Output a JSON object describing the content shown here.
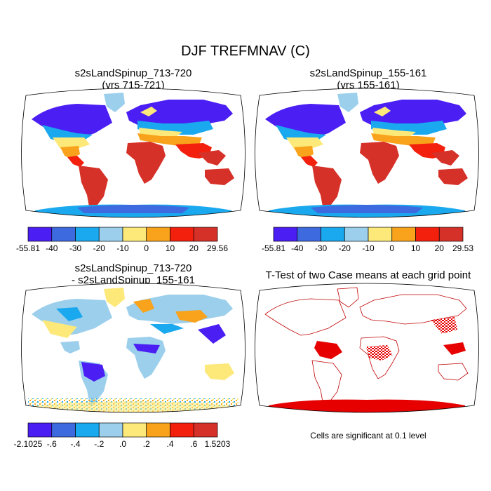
{
  "figure": {
    "title": "DJF TREFMNAV (C)",
    "note": "Cells are significant at 0.1 level"
  },
  "palettes": {
    "temperature": [
      "#4b1ef4",
      "#3e6ae0",
      "#1aa8ee",
      "#9bcfec",
      "#fde97a",
      "#f8a31b",
      "#f4200e",
      "#d63128"
    ],
    "difference": [
      "#4b1ef4",
      "#3e6ae0",
      "#1aa8ee",
      "#9bcfec",
      "#fde97a",
      "#f8a31b",
      "#f4200e",
      "#d63128"
    ],
    "significance": "#e60000"
  },
  "chart_data": [
    {
      "type": "heatmap",
      "title": "s2sLandSpinup_713-720",
      "subtitle": "(yrs 715-721)",
      "projection": "Robinson",
      "colorbar": {
        "labels": [
          "-55.81",
          "-40",
          "-30",
          "-20",
          "-10",
          "0",
          "10",
          "20",
          "29.56"
        ]
      }
    },
    {
      "type": "heatmap",
      "title": "s2sLandSpinup_155-161",
      "subtitle": "(yrs 155-161)",
      "projection": "Robinson",
      "colorbar": {
        "labels": [
          "-55.81",
          "-40",
          "-30",
          "-20",
          "-10",
          "0",
          "10",
          "20",
          "29.53"
        ]
      }
    },
    {
      "type": "heatmap",
      "title": "s2sLandSpinup_713-720",
      "subtitle": "- s2sLandSpinup_155-161",
      "projection": "Robinson",
      "colorbar": {
        "labels": [
          "-2.1025",
          "-.6",
          "-.4",
          "-.2",
          ".0",
          ".2",
          ".4",
          ".6",
          "1.5203"
        ]
      }
    },
    {
      "type": "heatmap",
      "title": "T-Test of two Case means at each grid point",
      "projection": "Robinson"
    }
  ]
}
